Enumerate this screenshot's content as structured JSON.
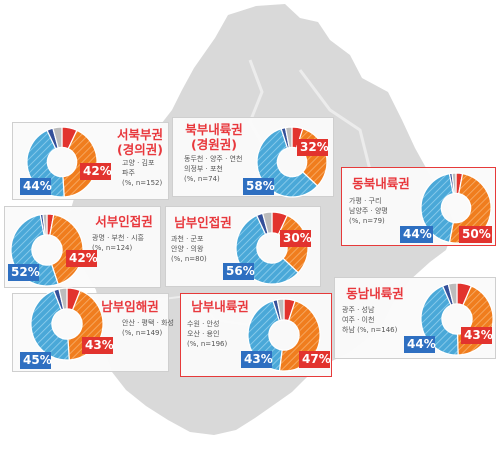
{
  "chart_data": [
    {
      "type": "donut",
      "title": "서북부권",
      "title2": "(경의권)",
      "subtitle_lines": [
        "고양 · 김포",
        "파주",
        "(%, n=152)"
      ],
      "orange_value": 42,
      "blue_value": 44,
      "orange_label": "42%",
      "blue_label": "44%",
      "highlighted": false
    },
    {
      "type": "donut",
      "title": "북부내륙권",
      "title2": "(경원권)",
      "subtitle_lines": [
        "동두천 · 양주 · 연천",
        "의정부 · 포천",
        "(%, n=74)"
      ],
      "orange_value": 32,
      "blue_value": 58,
      "orange_label": "32%",
      "blue_label": "58%",
      "highlighted": false
    },
    {
      "type": "donut",
      "title": "동북내륙권",
      "title2": "",
      "subtitle_lines": [
        "가평 · 구리",
        "남양주 · 양평",
        "(%, n=79)"
      ],
      "orange_value": 50,
      "blue_value": 44,
      "orange_label": "50%",
      "blue_label": "44%",
      "highlighted": true
    },
    {
      "type": "donut",
      "title": "서부인접권",
      "title2": "",
      "subtitle_lines": [
        "광명 · 부천 · 시흥",
        "(%, n=124)"
      ],
      "orange_value": 42,
      "blue_value": 52,
      "orange_label": "42%",
      "blue_label": "52%",
      "highlighted": false
    },
    {
      "type": "donut",
      "title": "남부인접권",
      "title2": "",
      "subtitle_lines": [
        "과천 · 군포",
        "안양 · 의왕",
        "(%, n=80)"
      ],
      "orange_value": 30,
      "blue_value": 56,
      "orange_label": "30%",
      "blue_label": "56%",
      "highlighted": false
    },
    {
      "type": "donut",
      "title": "남부임해권",
      "title2": "",
      "subtitle_lines": [
        "안산 · 평택 · 화성",
        "(%, n=149)"
      ],
      "orange_value": 43,
      "blue_value": 45,
      "orange_label": "43%",
      "blue_label": "45%",
      "highlighted": false
    },
    {
      "type": "donut",
      "title": "남부내륙권",
      "title2": "",
      "subtitle_lines": [
        "수원 · 안성",
        "오산 · 용인",
        "(%, n=196)"
      ],
      "orange_value": 47,
      "blue_value": 43,
      "orange_label": "47%",
      "blue_label": "43%",
      "highlighted": true
    },
    {
      "type": "donut",
      "title": "동남내륙권",
      "title2": "",
      "subtitle_lines": [
        "광주 · 성남",
        "여주 · 이천",
        "하남 (%, n=146)"
      ],
      "orange_value": 43,
      "blue_value": 44,
      "orange_label": "43%",
      "blue_label": "44%",
      "highlighted": false
    }
  ],
  "colors": {
    "red": "#e2332e",
    "orange": "#f07d1e",
    "blue": "#4aa8d8",
    "blue_label": "#2e6fc1",
    "gray": "#bcbcbc",
    "navy": "#34509a",
    "map": "#d9d9d9",
    "title": "#e8383d"
  }
}
